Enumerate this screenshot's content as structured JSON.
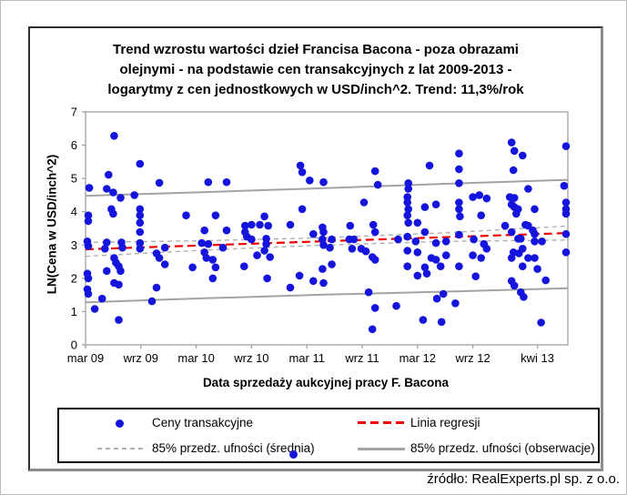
{
  "source_note": "źródło: RealExperts.pl sp. z o.o.",
  "chart": {
    "title": "Trend wzrostu wartości dzieł Francisa Bacona - poza obrazami\nolejnymi  - na podstawie cen transakcyjnych z lat 2009-2013 -\nlogarytmy z cen jednostkowych w USD/inch^2. Trend: 11,3%/rok",
    "x_axis_label": "Data sprzedaży aukcyjnej pracy F. Bacona",
    "y_axis_label": "LN(Cena w USD/inch^2)",
    "legend": [
      {
        "label": "Ceny transakcyjne",
        "marker": "dot",
        "color": "#1414dc"
      },
      {
        "label": "Linia regresji",
        "marker": "dashed",
        "color": "#ee0000"
      },
      {
        "label": "85% przedz. ufności (średnia)",
        "marker": "dashed",
        "color": "#adadad"
      },
      {
        "label": "85% przedz. ufności (obserwacje)",
        "marker": "solid",
        "color": "#a3a3a3"
      }
    ]
  },
  "chart_data": {
    "type": "scatter",
    "title": "Trend wzrostu wartości dzieł Francisa Bacona - poza obrazami olejnymi - na podstawie cen transakcyjnych z lat 2009-2013 - logarytmy z cen jednostkowych w USD/inch^2. Trend: 11,3%/rok",
    "xlabel": "Data sprzedaży aukcyjnej pracy F. Bacona",
    "ylabel": "LN(Cena w USD/inch^2)",
    "trend": "11,3%/rok",
    "x_unit": "months since mar 2009",
    "xlim": [
      0,
      52.3
    ],
    "ylim": [
      0,
      7
    ],
    "grid": false,
    "legend_position": "bottom-box",
    "y_ticks": [
      0,
      1,
      2,
      3,
      4,
      5,
      6,
      7
    ],
    "x_tick_months": [
      0,
      6,
      12,
      18,
      24,
      30,
      36,
      42,
      49
    ],
    "x_tick_labels": [
      "mar 09",
      "wrz 09",
      "mar 10",
      "wrz 10",
      "mar 11",
      "wrz 11",
      "mar 12",
      "wrz 12",
      "kwi 13"
    ],
    "series": [
      {
        "name": "Ceny transakcyjne",
        "kind": "scatter",
        "color": "#1414dc",
        "points": [
          [
            3.1,
            6.28
          ],
          [
            5.9,
            5.44
          ],
          [
            2.5,
            5.11
          ],
          [
            0.4,
            4.72
          ],
          [
            2.3,
            4.69
          ],
          [
            3.0,
            4.58
          ],
          [
            3.8,
            4.42
          ],
          [
            5.3,
            4.5
          ],
          [
            8.0,
            4.87
          ],
          [
            2.8,
            4.08
          ],
          [
            3.0,
            3.94
          ],
          [
            0.3,
            3.89
          ],
          [
            0.3,
            3.72
          ],
          [
            5.9,
            4.08
          ],
          [
            5.9,
            3.89
          ],
          [
            5.9,
            3.67
          ],
          [
            5.9,
            3.39
          ],
          [
            0.2,
            3.11
          ],
          [
            0.3,
            2.97
          ],
          [
            2.3,
            3.08
          ],
          [
            3.9,
            3.08
          ],
          [
            4.0,
            2.92
          ],
          [
            2.1,
            2.89
          ],
          [
            5.9,
            3.06
          ],
          [
            5.9,
            2.89
          ],
          [
            7.7,
            2.75
          ],
          [
            8.0,
            2.61
          ],
          [
            3.1,
            2.61
          ],
          [
            3.3,
            2.47
          ],
          [
            3.6,
            2.36
          ],
          [
            3.8,
            2.22
          ],
          [
            2.3,
            2.22
          ],
          [
            0.2,
            2.14
          ],
          [
            0.3,
            2.0
          ],
          [
            3.1,
            1.86
          ],
          [
            3.6,
            1.81
          ],
          [
            7.7,
            1.72
          ],
          [
            0.2,
            1.67
          ],
          [
            0.3,
            1.53
          ],
          [
            1.8,
            1.39
          ],
          [
            7.2,
            1.31
          ],
          [
            1.0,
            1.08
          ],
          [
            3.6,
            0.75
          ],
          [
            8.6,
            2.92
          ],
          [
            8.6,
            2.42
          ],
          [
            13.3,
            4.89
          ],
          [
            15.3,
            4.89
          ],
          [
            10.9,
            3.89
          ],
          [
            14.1,
            3.89
          ],
          [
            12.9,
            3.44
          ],
          [
            15.3,
            3.44
          ],
          [
            17.3,
            3.58
          ],
          [
            17.3,
            3.39
          ],
          [
            17.5,
            3.25
          ],
          [
            12.6,
            3.06
          ],
          [
            13.3,
            3.03
          ],
          [
            14.9,
            2.92
          ],
          [
            12.9,
            2.78
          ],
          [
            13.1,
            2.61
          ],
          [
            13.8,
            2.56
          ],
          [
            11.6,
            2.33
          ],
          [
            14.1,
            2.33
          ],
          [
            17.2,
            2.36
          ],
          [
            13.8,
            2.0
          ],
          [
            23.3,
            5.39
          ],
          [
            23.5,
            5.19
          ],
          [
            24.3,
            4.94
          ],
          [
            25.8,
            4.89
          ],
          [
            23.5,
            4.08
          ],
          [
            19.4,
            3.86
          ],
          [
            18.0,
            3.61
          ],
          [
            18.9,
            3.61
          ],
          [
            19.8,
            3.58
          ],
          [
            22.2,
            3.61
          ],
          [
            25.7,
            3.53
          ],
          [
            25.8,
            3.39
          ],
          [
            24.7,
            3.33
          ],
          [
            19.6,
            3.19
          ],
          [
            18.0,
            3.17
          ],
          [
            19.6,
            3.03
          ],
          [
            19.4,
            2.83
          ],
          [
            25.7,
            3.17
          ],
          [
            25.8,
            3.0
          ],
          [
            18.6,
            2.69
          ],
          [
            20.0,
            2.64
          ],
          [
            19.7,
            2.0
          ],
          [
            23.2,
            2.08
          ],
          [
            25.7,
            2.28
          ],
          [
            25.8,
            1.86
          ],
          [
            24.7,
            1.92
          ],
          [
            22.2,
            1.72
          ],
          [
            31.4,
            5.22
          ],
          [
            31.7,
            4.81
          ],
          [
            30.2,
            4.28
          ],
          [
            28.7,
            3.58
          ],
          [
            31.2,
            3.61
          ],
          [
            31.4,
            3.39
          ],
          [
            28.6,
            3.17
          ],
          [
            29.1,
            3.17
          ],
          [
            26.7,
            3.17
          ],
          [
            26.5,
            2.92
          ],
          [
            28.9,
            2.89
          ],
          [
            29.9,
            2.89
          ],
          [
            30.4,
            2.81
          ],
          [
            31.1,
            2.64
          ],
          [
            31.4,
            2.56
          ],
          [
            26.7,
            2.42
          ],
          [
            33.9,
            3.17
          ],
          [
            30.7,
            1.58
          ],
          [
            31.4,
            1.11
          ],
          [
            33.7,
            1.17
          ],
          [
            31.1,
            0.47
          ],
          [
            37.3,
            5.39
          ],
          [
            40.5,
            5.75
          ],
          [
            40.5,
            5.28
          ],
          [
            40.5,
            4.86
          ],
          [
            35.0,
            4.86
          ],
          [
            35.0,
            4.69
          ],
          [
            34.9,
            4.44
          ],
          [
            34.9,
            4.28
          ],
          [
            35.0,
            4.08
          ],
          [
            34.9,
            3.89
          ],
          [
            35.0,
            3.67
          ],
          [
            42.0,
            4.44
          ],
          [
            42.7,
            4.5
          ],
          [
            43.5,
            4.4
          ],
          [
            38.0,
            4.22
          ],
          [
            36.8,
            4.14
          ],
          [
            40.5,
            4.28
          ],
          [
            40.5,
            4.08
          ],
          [
            40.6,
            3.86
          ],
          [
            42.9,
            3.89
          ],
          [
            36.0,
            3.67
          ],
          [
            36.8,
            3.39
          ],
          [
            40.5,
            3.31
          ],
          [
            34.9,
            3.25
          ],
          [
            35.8,
            3.11
          ],
          [
            38.0,
            3.06
          ],
          [
            39.1,
            3.11
          ],
          [
            42.1,
            3.17
          ],
          [
            43.2,
            3.03
          ],
          [
            43.5,
            2.89
          ],
          [
            34.9,
            2.83
          ],
          [
            36.0,
            2.78
          ],
          [
            37.5,
            2.61
          ],
          [
            38.0,
            2.56
          ],
          [
            39.1,
            2.69
          ],
          [
            42.0,
            2.69
          ],
          [
            42.9,
            2.61
          ],
          [
            34.9,
            2.36
          ],
          [
            36.8,
            2.33
          ],
          [
            38.5,
            2.36
          ],
          [
            40.5,
            2.36
          ],
          [
            36.0,
            2.08
          ],
          [
            37.0,
            2.14
          ],
          [
            42.3,
            2.06
          ],
          [
            38.8,
            1.53
          ],
          [
            38.1,
            1.39
          ],
          [
            40.1,
            1.25
          ],
          [
            36.6,
            0.75
          ],
          [
            38.6,
            0.69
          ],
          [
            46.2,
            6.08
          ],
          [
            46.5,
            5.83
          ],
          [
            47.4,
            5.69
          ],
          [
            52.1,
            5.97
          ],
          [
            46.4,
            5.25
          ],
          [
            48.0,
            4.69
          ],
          [
            51.9,
            4.78
          ],
          [
            46.0,
            4.44
          ],
          [
            46.5,
            4.42
          ],
          [
            46.2,
            4.22
          ],
          [
            46.5,
            4.14
          ],
          [
            46.9,
            4.08
          ],
          [
            48.7,
            4.08
          ],
          [
            52.1,
            4.28
          ],
          [
            52.1,
            4.08
          ],
          [
            52.1,
            3.94
          ],
          [
            46.7,
            3.94
          ],
          [
            47.7,
            3.61
          ],
          [
            48.0,
            3.58
          ],
          [
            45.5,
            3.58
          ],
          [
            48.5,
            3.44
          ],
          [
            46.2,
            3.39
          ],
          [
            48.7,
            3.33
          ],
          [
            46.9,
            3.19
          ],
          [
            47.2,
            3.19
          ],
          [
            48.7,
            3.11
          ],
          [
            49.5,
            3.11
          ],
          [
            52.1,
            3.33
          ],
          [
            46.4,
            2.78
          ],
          [
            47.4,
            2.89
          ],
          [
            47.0,
            2.75
          ],
          [
            48.0,
            2.61
          ],
          [
            48.7,
            2.61
          ],
          [
            46.2,
            2.61
          ],
          [
            47.4,
            2.36
          ],
          [
            49.0,
            2.28
          ],
          [
            52.1,
            2.78
          ],
          [
            46.2,
            1.92
          ],
          [
            46.5,
            1.78
          ],
          [
            49.9,
            1.94
          ],
          [
            47.2,
            1.58
          ],
          [
            47.5,
            1.44
          ],
          [
            49.4,
            0.67
          ]
        ]
      },
      {
        "name": "Linia regresji",
        "kind": "line",
        "style": "dashed",
        "color": "#ee0000",
        "width": 2.2,
        "dash": "9 5",
        "x": [
          0,
          52.3
        ],
        "y": [
          2.87,
          3.36
        ]
      },
      {
        "name": "85% przedz. ufności (średnia)",
        "kind": "band",
        "style": "dashed",
        "color": "#b0b0b0",
        "width": 1.4,
        "dash": "5 4",
        "x": [
          0,
          13,
          26,
          39,
          52.3
        ],
        "upper": [
          3.08,
          3.13,
          3.22,
          3.37,
          3.57
        ],
        "lower": [
          2.66,
          2.85,
          3.0,
          3.11,
          3.15
        ]
      },
      {
        "name": "85% przedz. ufności (obserwacje)",
        "kind": "band",
        "style": "solid",
        "color": "#a3a3a3",
        "width": 2,
        "x": [
          0,
          13,
          26,
          39,
          52.3
        ],
        "upper": [
          4.48,
          4.59,
          4.71,
          4.84,
          4.96
        ],
        "lower": [
          1.28,
          1.4,
          1.51,
          1.6,
          1.7
        ]
      }
    ]
  }
}
